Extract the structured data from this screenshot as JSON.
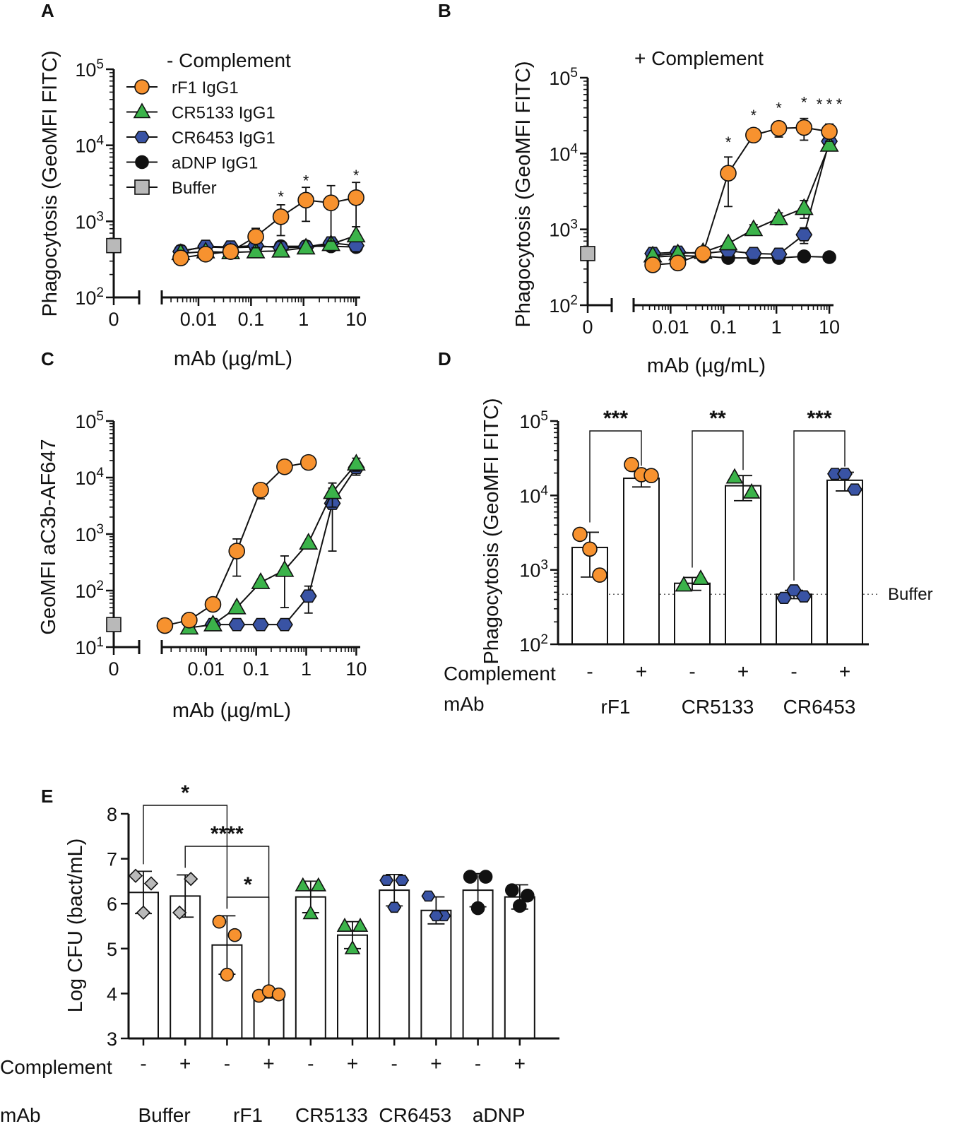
{
  "colors": {
    "rF1": "#F7922F",
    "CR5133": "#3BB34A",
    "CR6453": "#3953A4",
    "aDNP": "#111111",
    "Buffer": "#B9B9B9"
  },
  "chart_data": [
    {
      "panel": "A",
      "type": "line",
      "title": "- Complement",
      "xlabel": "mAb (µg/mL)",
      "ylabel": "Phagocytosis (GeoMFI FITC)",
      "xscale": "log",
      "yscale": "log",
      "ylim": [
        100,
        100000
      ],
      "xlim": [
        0.002,
        12
      ],
      "x_tick_labels": [
        "0",
        "0.01",
        "0.1",
        "1",
        "10"
      ],
      "y_tick_labels": [
        {
          "base": "10",
          "exp": "2"
        },
        {
          "base": "10",
          "exp": "3"
        },
        {
          "base": "10",
          "exp": "4"
        },
        {
          "base": "10",
          "exp": "5"
        }
      ],
      "x": [
        0.0046,
        0.0137,
        0.041,
        0.123,
        0.37,
        1.11,
        3.33,
        10
      ],
      "legend": [
        "rF1 IgG1",
        "CR5133 IgG1",
        "CR6453 IgG1",
        "aDNP IgG1",
        "Buffer"
      ],
      "series": [
        {
          "name": "rF1 IgG1",
          "key": "rF1",
          "marker": "circle",
          "values": [
            330,
            370,
            400,
            630,
            1150,
            1900,
            1750,
            2050
          ],
          "err": [
            30,
            30,
            40,
            180,
            500,
            900,
            1200,
            1200
          ]
        },
        {
          "name": "CR5133 IgG1",
          "key": "CR5133",
          "marker": "triangle",
          "values": [
            380,
            400,
            390,
            400,
            410,
            450,
            500,
            650
          ],
          "err": [
            0,
            0,
            0,
            0,
            0,
            0,
            0,
            0
          ]
        },
        {
          "name": "CR6453 IgG1",
          "key": "CR6453",
          "marker": "hexagon",
          "values": [
            400,
            470,
            460,
            480,
            450,
            460,
            520,
            480
          ],
          "err": [
            0,
            0,
            0,
            0,
            0,
            0,
            0,
            0
          ]
        },
        {
          "name": "aDNP IgG1",
          "key": "aDNP",
          "marker": "dot",
          "values": [
            410,
            460,
            450,
            460,
            470,
            470,
            470,
            460
          ],
          "err": [
            0,
            0,
            0,
            0,
            0,
            0,
            0,
            0
          ]
        }
      ],
      "baseline": {
        "name": "Buffer",
        "key": "Buffer",
        "marker": "square",
        "x_label": "0",
        "value": 480
      },
      "annotations": [
        {
          "x": 0.37,
          "y": 1800,
          "text": "*"
        },
        {
          "x": 1.11,
          "y": 2900,
          "text": "*"
        },
        {
          "x": 10,
          "y": 3400,
          "text": "*"
        }
      ]
    },
    {
      "panel": "B",
      "type": "line",
      "title": "+ Complement",
      "xlabel": "mAb (µg/mL)",
      "ylabel": "Phagocytosis (GeoMFI FITC)",
      "xscale": "log",
      "yscale": "log",
      "ylim": [
        100,
        100000
      ],
      "xlim": [
        0.002,
        12
      ],
      "x_tick_labels": [
        "0",
        "0.01",
        "0.1",
        "1",
        "10"
      ],
      "y_tick_labels": [
        {
          "base": "10",
          "exp": "2"
        },
        {
          "base": "10",
          "exp": "3"
        },
        {
          "base": "10",
          "exp": "4"
        },
        {
          "base": "10",
          "exp": "5"
        }
      ],
      "x": [
        0.0046,
        0.0137,
        0.041,
        0.123,
        0.37,
        1.11,
        3.33,
        10
      ],
      "series": [
        {
          "name": "rF1 IgG1",
          "key": "rF1",
          "marker": "circle",
          "values": [
            340,
            360,
            480,
            5500,
            17500,
            21500,
            22000,
            19500
          ],
          "err": [
            0,
            0,
            0,
            3500,
            3000,
            5000,
            7000,
            5000
          ]
        },
        {
          "name": "CR5133 IgG1",
          "key": "CR5133",
          "marker": "triangle",
          "values": [
            450,
            480,
            500,
            650,
            1000,
            1400,
            1900,
            13000
          ],
          "err": [
            0,
            0,
            0,
            0,
            150,
            250,
            500,
            0
          ]
        },
        {
          "name": "CR6453 IgG1",
          "key": "CR6453",
          "marker": "hexagon",
          "values": [
            480,
            500,
            480,
            520,
            480,
            470,
            850,
            14500
          ],
          "err": [
            0,
            0,
            0,
            0,
            0,
            0,
            200,
            0
          ]
        },
        {
          "name": "aDNP IgG1",
          "key": "aDNP",
          "marker": "dot",
          "values": [
            430,
            450,
            440,
            420,
            420,
            420,
            440,
            430
          ],
          "err": [
            0,
            0,
            0,
            0,
            0,
            0,
            0,
            0
          ]
        }
      ],
      "baseline": {
        "name": "Buffer",
        "key": "Buffer",
        "marker": "square",
        "x_label": "0",
        "value": 480
      },
      "annotations": [
        {
          "x": 0.123,
          "y": 12000,
          "text": "*",
          "color": "#111111"
        },
        {
          "x": 0.37,
          "y": 27000,
          "text": "*",
          "color": "#111111"
        },
        {
          "x": 1.11,
          "y": 34000,
          "text": "*",
          "color": "#111111"
        },
        {
          "x": 3.33,
          "y": 40000,
          "text": "*",
          "color": "#111111"
        },
        {
          "x": 10,
          "y": 38000,
          "text": "*",
          "color": "#3BB34A",
          "dx": -14
        },
        {
          "x": 10,
          "y": 38000,
          "text": "*",
          "color": "#3953A4",
          "dx": 0
        },
        {
          "x": 10,
          "y": 38000,
          "text": "*",
          "color": "#111111",
          "dx": 14
        }
      ]
    },
    {
      "panel": "C",
      "type": "line",
      "title": "",
      "xlabel": "mAb (µg/mL)",
      "ylabel": "GeoMFI aC3b-AF647",
      "xscale": "log",
      "yscale": "log",
      "ylim": [
        10,
        100000
      ],
      "xlim": [
        0.0013,
        12
      ],
      "x_tick_labels": [
        "0",
        "0.01",
        "0.1",
        "1",
        "10"
      ],
      "y_tick_labels": [
        {
          "base": "10",
          "exp": "1"
        },
        {
          "base": "10",
          "exp": "2"
        },
        {
          "base": "10",
          "exp": "3"
        },
        {
          "base": "10",
          "exp": "4"
        },
        {
          "base": "10",
          "exp": "5"
        }
      ],
      "series": [
        {
          "name": "rF1 IgG1",
          "key": "rF1",
          "marker": "circle",
          "x": [
            0.0015,
            0.0046,
            0.0137,
            0.041,
            0.123,
            0.37,
            1.11
          ],
          "values": [
            24,
            30,
            57,
            500,
            6000,
            15500,
            18500
          ],
          "err": [
            0,
            0,
            0,
            320,
            1800,
            0,
            0
          ]
        },
        {
          "name": "CR5133 IgG1",
          "key": "CR5133",
          "marker": "triangle",
          "x": [
            0.0046,
            0.0137,
            0.041,
            0.123,
            0.37,
            1.11,
            3.33,
            10
          ],
          "values": [
            22,
            25,
            50,
            140,
            230,
            700,
            5500,
            17500
          ],
          "err": [
            0,
            0,
            0,
            0,
            180,
            0,
            2500,
            4500
          ]
        },
        {
          "name": "CR6453 IgG1",
          "key": "CR6453",
          "marker": "hexagon",
          "x": [
            0.0137,
            0.041,
            0.123,
            0.37,
            1.11,
            3.33,
            10
          ],
          "values": [
            25,
            25,
            25,
            25,
            80,
            3500,
            15000
          ],
          "err": [
            0,
            0,
            0,
            0,
            40,
            3000,
            4000
          ]
        }
      ],
      "baseline": {
        "name": "Buffer",
        "key": "Buffer",
        "marker": "square",
        "x_label": "0",
        "value": 25
      }
    },
    {
      "panel": "D",
      "type": "bar",
      "ylabel": "Phagocytosis (GeoMFI  FITC)",
      "yscale": "log",
      "ylim": [
        100,
        100000
      ],
      "y_tick_labels": [
        {
          "base": "10",
          "exp": "2"
        },
        {
          "base": "10",
          "exp": "3"
        },
        {
          "base": "10",
          "exp": "4"
        },
        {
          "base": "10",
          "exp": "5"
        }
      ],
      "row_labels": [
        "Complement",
        "mAb"
      ],
      "complement": [
        "-",
        "+",
        "-",
        "+",
        "-",
        "+"
      ],
      "groups": [
        "rF1",
        "CR5133",
        "CR6453"
      ],
      "bars": [
        {
          "group": "rF1",
          "key": "rF1",
          "marker": "circle",
          "value": 2000,
          "err": 1200,
          "points": [
            3000,
            1900,
            850
          ]
        },
        {
          "group": "rF1",
          "key": "rF1",
          "marker": "circle",
          "value": 17000,
          "err": 4000,
          "points": [
            26000,
            19000,
            18500
          ]
        },
        {
          "group": "CR5133",
          "key": "CR5133",
          "marker": "triangle",
          "value": 660,
          "err": 130,
          "points": [
            620,
            760
          ]
        },
        {
          "group": "CR5133",
          "key": "CR5133",
          "marker": "triangle",
          "value": 13500,
          "err": 5000,
          "points": [
            17500,
            11000
          ]
        },
        {
          "group": "CR6453",
          "key": "CR6453",
          "marker": "hexagon",
          "value": 470,
          "err": 60,
          "points": [
            420,
            530,
            440
          ]
        },
        {
          "group": "CR6453",
          "key": "CR6453",
          "marker": "hexagon",
          "value": 16000,
          "err": 4500,
          "points": [
            19500,
            19500,
            12000
          ]
        }
      ],
      "reference_line": {
        "label": "Buffer",
        "value": 470
      },
      "significance": [
        {
          "from": 0,
          "to": 1,
          "text": "***"
        },
        {
          "from": 2,
          "to": 3,
          "text": "**"
        },
        {
          "from": 4,
          "to": 5,
          "text": "***"
        }
      ]
    },
    {
      "panel": "E",
      "type": "bar",
      "ylabel": "Log CFU (bact/mL)",
      "ylim": [
        3,
        8
      ],
      "y_tick_labels": [
        "3",
        "4",
        "5",
        "6",
        "7",
        "8"
      ],
      "row_labels": [
        "Complement",
        "mAb"
      ],
      "complement": [
        "-",
        "+",
        "-",
        "+",
        "-",
        "+",
        "-",
        "+",
        "-",
        "+"
      ],
      "groups": [
        "Buffer",
        "rF1",
        "CR5133",
        "CR6453",
        "aDNP"
      ],
      "bars": [
        {
          "group": "Buffer",
          "key": "Buffer",
          "marker": "diamond",
          "value": 6.25,
          "err": 0.47,
          "points": [
            6.62,
            6.45,
            5.8
          ]
        },
        {
          "group": "Buffer",
          "key": "Buffer",
          "marker": "diamond",
          "value": 6.17,
          "err": 0.47,
          "points": [
            6.55,
            5.8
          ]
        },
        {
          "group": "rF1",
          "key": "rF1",
          "marker": "circle",
          "value": 5.08,
          "err": 0.65,
          "points": [
            5.6,
            5.3,
            4.42
          ]
        },
        {
          "group": "rF1",
          "key": "rF1",
          "marker": "circle",
          "value": 3.97,
          "err": 0.07,
          "points": [
            3.95,
            4.05,
            3.98
          ]
        },
        {
          "group": "CR5133",
          "key": "CR5133",
          "marker": "triangle",
          "value": 6.15,
          "err": 0.35,
          "points": [
            6.4,
            6.4,
            5.78
          ]
        },
        {
          "group": "CR5133",
          "key": "CR5133",
          "marker": "triangle",
          "value": 5.3,
          "err": 0.3,
          "points": [
            5.5,
            5.5,
            5.0
          ]
        },
        {
          "group": "CR6453",
          "key": "CR6453",
          "marker": "hexagon",
          "value": 6.3,
          "err": 0.35,
          "points": [
            6.52,
            6.52,
            5.92
          ]
        },
        {
          "group": "CR6453",
          "key": "CR6453",
          "marker": "hexagon",
          "value": 5.85,
          "err": 0.3,
          "points": [
            6.17,
            5.73,
            5.73
          ]
        },
        {
          "group": "aDNP",
          "key": "aDNP",
          "marker": "dot",
          "value": 6.3,
          "err": 0.37,
          "points": [
            6.6,
            6.6,
            5.9
          ]
        },
        {
          "group": "aDNP",
          "key": "aDNP",
          "marker": "dot",
          "value": 6.15,
          "err": 0.27,
          "points": [
            6.3,
            6.18,
            5.95
          ]
        }
      ],
      "significance": [
        {
          "from": 0,
          "to": 2,
          "text": "*"
        },
        {
          "from": 1,
          "to": 3,
          "text": "****"
        },
        {
          "from": 2,
          "to": 3,
          "text": "*"
        }
      ]
    }
  ]
}
